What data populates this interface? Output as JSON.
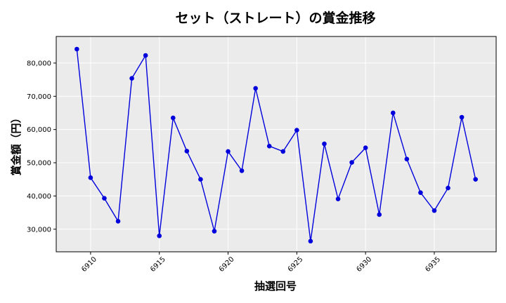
{
  "chart_data": {
    "type": "line",
    "title": "セット（ストレート）の賞金推移",
    "xlabel": "抽選回号",
    "ylabel": "賞金額（円）",
    "x": [
      6909,
      6910,
      6911,
      6912,
      6913,
      6914,
      6915,
      6916,
      6917,
      6918,
      6919,
      6920,
      6921,
      6922,
      6923,
      6924,
      6925,
      6926,
      6927,
      6928,
      6929,
      6930,
      6931,
      6932,
      6933,
      6934,
      6935,
      6936,
      6937,
      6938
    ],
    "series": [
      {
        "color": "#0000dd",
        "values": [
          84200,
          45500,
          39300,
          32400,
          75400,
          82300,
          28000,
          63500,
          53500,
          45000,
          29400,
          53400,
          47600,
          72400,
          55000,
          53400,
          59800,
          26400,
          55700,
          39100,
          50100,
          54500,
          34400,
          65000,
          51100,
          41000,
          35600,
          42400,
          63700,
          45000
        ]
      }
    ],
    "xlim": [
      6907.5,
      6939.5
    ],
    "ylim": [
      23200,
      88000
    ],
    "xticks": [
      6910,
      6915,
      6920,
      6925,
      6930,
      6935
    ],
    "xtick_labels": [
      "6910",
      "6915",
      "6920",
      "6925",
      "6930",
      "6935"
    ],
    "yticks": [
      30000,
      40000,
      50000,
      60000,
      70000,
      80000
    ],
    "ytick_labels": [
      "30,000",
      "40,000",
      "50,000",
      "60,000",
      "70,000",
      "80,000"
    ],
    "grid": true,
    "legend": "none",
    "background": "#ebebeb"
  }
}
